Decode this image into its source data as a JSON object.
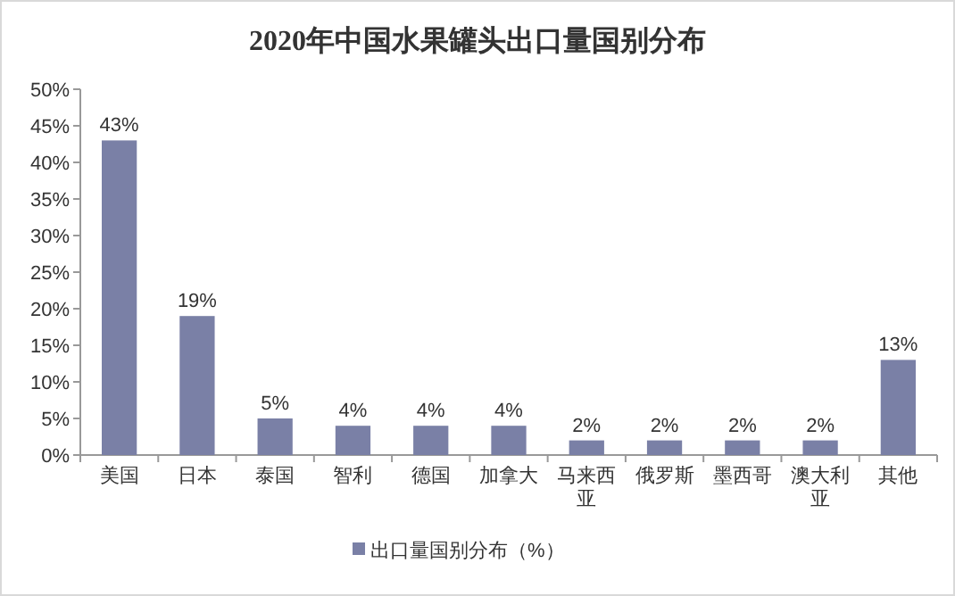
{
  "chart_data": {
    "type": "bar",
    "title": "2020年中国水果罐头出口量国别分布",
    "categories": [
      "美国",
      "日本",
      "泰国",
      "智利",
      "德国",
      "加拿大",
      "马来西亚",
      "俄罗斯",
      "墨西哥",
      "澳大利亚",
      "其他"
    ],
    "series": [
      {
        "name": "出口量国别分布（%）",
        "color": "#7a80a6",
        "values": [
          43,
          19,
          5,
          4,
          4,
          4,
          2,
          2,
          2,
          2,
          13
        ],
        "value_labels": [
          "43%",
          "19%",
          "5%",
          "4%",
          "4%",
          "4%",
          "2%",
          "2%",
          "2%",
          "2%",
          "13%"
        ]
      }
    ],
    "ylim": [
      0,
      50
    ],
    "yticks": [
      {
        "value": 0,
        "label": "0%"
      },
      {
        "value": 5,
        "label": "5%"
      },
      {
        "value": 10,
        "label": "10%"
      },
      {
        "value": 15,
        "label": "15%"
      },
      {
        "value": 20,
        "label": "20%"
      },
      {
        "value": 25,
        "label": "25%"
      },
      {
        "value": 30,
        "label": "30%"
      },
      {
        "value": 35,
        "label": "35%"
      },
      {
        "value": 40,
        "label": "40%"
      },
      {
        "value": 45,
        "label": "45%"
      },
      {
        "value": 50,
        "label": "50%"
      }
    ],
    "legend": "bottom"
  }
}
